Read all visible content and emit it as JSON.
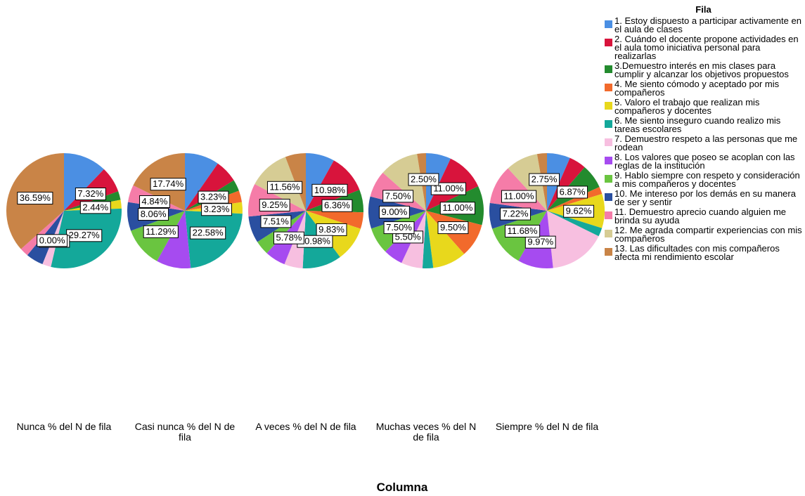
{
  "chart_data": {
    "type": "pie",
    "legend_title": "Fila",
    "x_label": "Columna",
    "categories": [
      "1. Estoy dispuesto a participar activamente en el aula de clases",
      "2. Cuándo el docente propone actividades en el aula tomo iniciativa personal para realizarlas",
      "3.Demuestro interés en mis clases para cumplir y alcanzar los objetivos propuestos",
      "4. Me siento cómodo y aceptado por mis compañeros",
      "5. Valoro el trabajo que realizan mis compañeros y docentes",
      "6. Me siento inseguro cuando realizo mis tareas escolares",
      "7. Demuestro respeto a las personas que me rodean",
      "8. Los valores que poseo se acoplan con las reglas de la institución",
      "9. Hablo siempre con respeto y consideración a mis compañeros y docentes",
      "10. Me intereso por los demás en su manera de ser y sentir",
      "11. Demuestro aprecio cuando alguien me brinda su ayuda",
      "12. Me agrada compartir experiencias con mis compañeros",
      "13. Las dificultades con mis compañeros afecta mi rendimiento escolar"
    ],
    "colors": [
      "#4b8fe3",
      "#d8143c",
      "#238b2e",
      "#f26a2c",
      "#e8d81c",
      "#14a89a",
      "#f7bfe0",
      "#a64bf0",
      "#6ac540",
      "#2a4fa0",
      "#f57ca8",
      "#d6cc94",
      "#c98447"
    ],
    "series": [
      {
        "name": "Nunca % del N de fila",
        "values": [
          12.2,
          7.32,
          2.44,
          0,
          2.44,
          29.27,
          2.44,
          0.0,
          0,
          4.88,
          2.44,
          0,
          36.59
        ],
        "value_labels": [
          null,
          "7.32%",
          null,
          null,
          "2.44%",
          "29.27%",
          "2.44%",
          "0.00%",
          null,
          null,
          null,
          null,
          "36.59%"
        ]
      },
      {
        "name": "Casi nunca % del N de fila",
        "values": [
          9.68,
          6.45,
          3.23,
          3.23,
          3.23,
          22.58,
          0,
          9.68,
          11.29,
          8.06,
          4.84,
          0,
          17.74
        ],
        "value_labels": [
          null,
          null,
          "3.23%",
          null,
          "3.23%",
          "22.58%",
          null,
          null,
          "11.29%",
          "8.06%",
          "4.84%",
          null,
          "17.74%"
        ]
      },
      {
        "name": "A veces % del N de fila",
        "values": [
          8.09,
          10.98,
          6.36,
          4.62,
          9.83,
          10.98,
          5.2,
          5.78,
          4.05,
          7.51,
          9.25,
          11.56,
          5.78
        ],
        "value_labels": [
          null,
          "10.98%",
          "6.36%",
          null,
          "9.83%",
          "10.98%",
          null,
          "5.78%",
          null,
          "7.51%",
          "9.25%",
          "11.56%",
          null
        ]
      },
      {
        "name": "Muchas veces % del N de fila",
        "values": [
          7.0,
          11.0,
          11.0,
          9.5,
          9.5,
          3.0,
          6.0,
          5.5,
          7.5,
          9.0,
          7.5,
          11.0,
          2.5
        ],
        "value_labels": [
          null,
          "11.00%",
          "11.00%",
          "9.50%",
          null,
          null,
          null,
          "5.50%",
          "7.50%",
          "9.00%",
          "7.50%",
          null,
          "2.50%"
        ]
      },
      {
        "name": "Siempre % del N de fila",
        "values": [
          6.53,
          4.81,
          6.87,
          2.06,
          9.62,
          2.41,
          16.0,
          9.97,
          11.68,
          7.22,
          11.0,
          9.08,
          2.75
        ],
        "value_labels": [
          null,
          null,
          "6.87%",
          null,
          "9.62%",
          null,
          null,
          "9.97%",
          "11.68%",
          "7.22%",
          "11.00%",
          null,
          "2.75%"
        ]
      }
    ]
  }
}
